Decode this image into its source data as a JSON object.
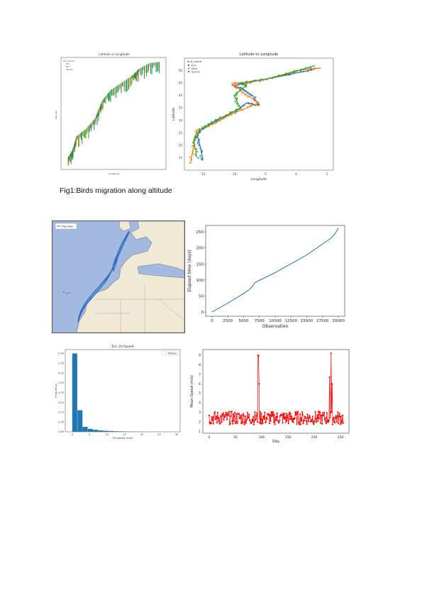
{
  "caption": "Fig1:Birds migration along altitude",
  "colors": {
    "blue": "#1f77b4",
    "orange": "#ff7f0e",
    "green": "#2ca02c",
    "red": "#ff0000",
    "ocean": "#a4b9e0",
    "land": "#efe9d6",
    "route": "#2d6fc0"
  },
  "chart_data": [
    {
      "type": "line",
      "title": "Latitude vs Longitude",
      "xlabel": "Longitude",
      "ylabel": "Latitude",
      "legend_title": "bird_name",
      "legend_position": "top-left",
      "series": [
        {
          "name": "Eric",
          "color": "#1f77b4",
          "x": [
            -15,
            -15.5,
            -16,
            -14,
            -13,
            -10,
            -8,
            -6,
            -7,
            -9,
            -10,
            -6,
            -2,
            2,
            3
          ],
          "y": [
            14,
            20,
            25,
            28,
            30,
            33,
            37,
            36,
            40,
            43,
            44,
            46,
            48,
            50,
            51
          ]
        },
        {
          "name": "Nico",
          "color": "#ff7f0e",
          "x": [
            -17,
            -16.5,
            -16,
            -13,
            -11,
            -8,
            -6,
            -9,
            -10,
            -8,
            -4,
            0,
            4
          ],
          "y": [
            13,
            20,
            26,
            29,
            32,
            35,
            37,
            42,
            45,
            45,
            47,
            50,
            51
          ]
        },
        {
          "name": "Sanne",
          "color": "#2ca02c",
          "x": [
            -16,
            -16.5,
            -15,
            -12,
            -9,
            -10,
            -8,
            -9,
            -4,
            -1,
            3
          ],
          "y": [
            15,
            22,
            27,
            31,
            35,
            40,
            44,
            45,
            47,
            49,
            52
          ]
        }
      ]
    },
    {
      "type": "line",
      "xlabel": "Observation",
      "ylabel": "Elapsed time (days)",
      "x": [
        0,
        2500,
        5000,
        6000,
        6400,
        6800,
        10000,
        15000,
        18800,
        19500,
        20000
      ],
      "y": [
        0,
        28,
        58,
        72,
        80,
        92,
        123,
        178,
        230,
        245,
        262
      ],
      "xticks": [
        "0",
        "2500",
        "5000",
        "7500",
        "10000",
        "12500",
        "15000",
        "17500",
        "20000"
      ],
      "yticks": [
        "0",
        "50",
        "100",
        "150",
        "200",
        "250"
      ]
    },
    {
      "type": "bar",
      "title": "Eric 2d Speed",
      "xlabel": "2D speed (m/s)",
      "ylabel": "Frequency",
      "legend": "Median",
      "bins": [
        0,
        1.5,
        3,
        4.5,
        6,
        7.5,
        9,
        10.5,
        12,
        13.5,
        15,
        16.5,
        18,
        19.5
      ],
      "values": [
        0.4,
        0.11,
        0.025,
        0.015,
        0.01,
        0.007,
        0.005,
        0.004,
        0.003,
        0.002,
        0.0015,
        0.001,
        0.0008,
        0.0005
      ],
      "xticks": [
        "0",
        "5",
        "10",
        "15",
        "20",
        "25",
        "30"
      ],
      "yticks": [
        "0.00",
        "0.05",
        "0.10",
        "0.15",
        "0.20",
        "0.25",
        "0.30",
        "0.35",
        "0.40"
      ]
    },
    {
      "type": "line",
      "xlabel": "Day",
      "ylabel": "Mean Speed (m/s)",
      "xticks": [
        "0",
        "50",
        "100",
        "150",
        "200",
        "250"
      ],
      "yticks": [
        "1",
        "2",
        "3",
        "4",
        "5",
        "6",
        "7",
        "8",
        "9"
      ],
      "spikes": [
        {
          "day": 93,
          "value": 9.0
        },
        {
          "day": 94,
          "value": 8.9
        },
        {
          "day": 95,
          "value": 6.0
        },
        {
          "day": 229,
          "value": 6.7
        },
        {
          "day": 232,
          "value": 9.2
        },
        {
          "day": 234,
          "value": 6.0
        }
      ],
      "baseline_range": [
        1.4,
        3.3
      ]
    }
  ],
  "figures": {
    "left_scatter": {
      "title": "Latitude vs Longitude",
      "xlabel": "Longitude",
      "ylabel": "Latitude",
      "legend_title": "bird_name",
      "legend": [
        "Eric",
        "Nico",
        "Sanne"
      ]
    },
    "map": {
      "legend": "Migration"
    }
  }
}
